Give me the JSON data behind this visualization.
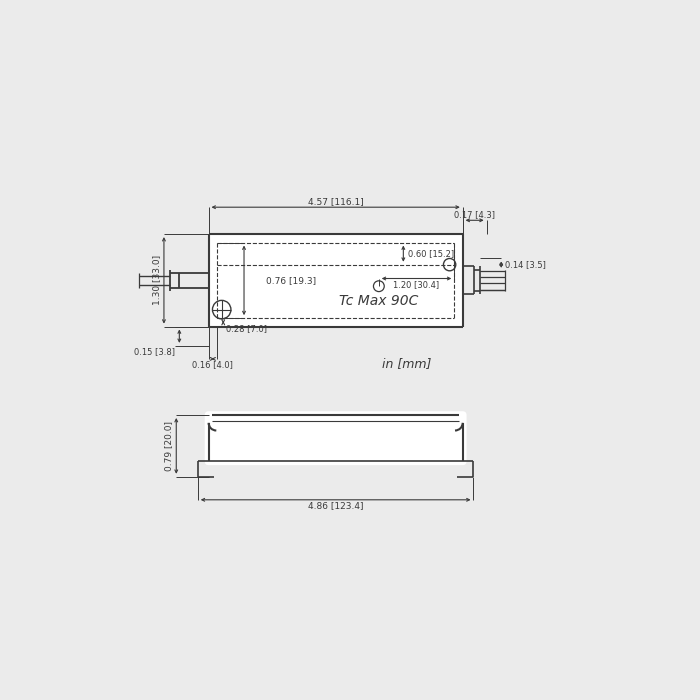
{
  "bg_color": "#ebebeb",
  "line_color": "#3a3a3a",
  "dim_color": "#3a3a3a",
  "text_color": "#3a3a3a",
  "font_size": 6.5,
  "top_view": {
    "label_main": "4.57 [116.1]",
    "label_width_short": "0.17 [4.3]",
    "label_height": "1.30 [33.0]",
    "label_inner_h": "0.76 [19.3]",
    "label_bot_dim": "0.28 [7.0]",
    "label_left_ext": "0.15 [3.8]",
    "label_left_w": "0.16 [4.0]",
    "label_right1": "0.60 [15.2]",
    "label_right2": "1.20 [30.4]",
    "label_right_h": "0.14 [3.5]",
    "tc_label": "Tc Max 90C",
    "unit_label": "in [mm]"
  },
  "side_view": {
    "label_height": "0.79 [20.0]",
    "label_width": "4.86 [123.4]"
  }
}
